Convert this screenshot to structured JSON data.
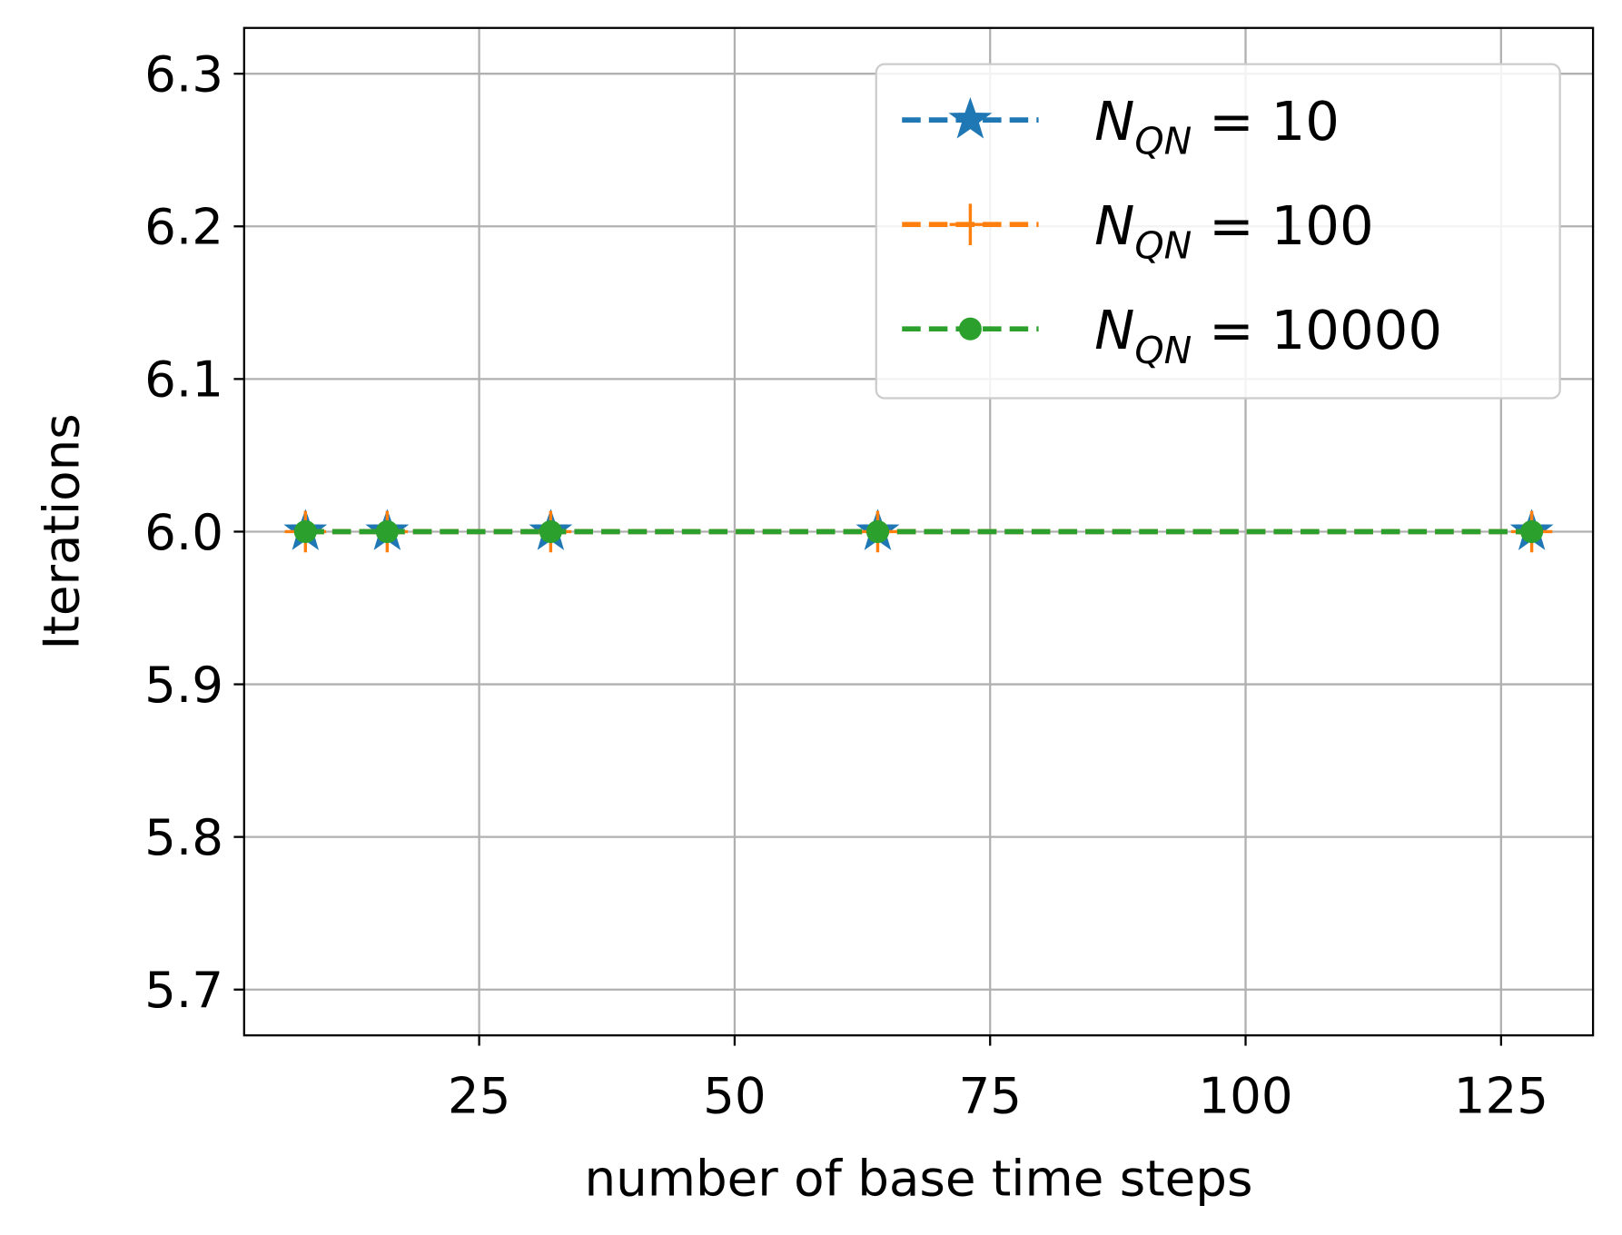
{
  "chart_data": {
    "type": "line",
    "x_label": "number of base time steps",
    "y_label": "Iterations",
    "x": [
      8,
      16,
      32,
      64,
      128
    ],
    "series": [
      {
        "name": "N_QN = 10",
        "color": "#1f77b4",
        "marker": "star",
        "values": [
          6,
          6,
          6,
          6,
          6
        ]
      },
      {
        "name": "N_QN = 100",
        "color": "#ff7f0e",
        "marker": "plus",
        "values": [
          6,
          6,
          6,
          6,
          6
        ]
      },
      {
        "name": "N_QN = 10000",
        "color": "#2ca02c",
        "marker": "circle",
        "values": [
          6,
          6,
          6,
          6,
          6
        ]
      }
    ],
    "xlim": [
      2,
      134
    ],
    "xticks": [
      25,
      50,
      75,
      100,
      125
    ],
    "ylim": [
      5.67,
      6.33
    ],
    "yticks": [
      {
        "value": 5.7,
        "label": "5.7"
      },
      {
        "value": 5.8,
        "label": "5.8"
      },
      {
        "value": 5.9,
        "label": "5.9"
      },
      {
        "value": 6.0,
        "label": "6.0"
      },
      {
        "value": 6.1,
        "label": "6.1"
      },
      {
        "value": 6.2,
        "label": "6.2"
      },
      {
        "value": 6.3,
        "label": "6.3"
      }
    ],
    "grid": true,
    "legend": "upper right"
  }
}
